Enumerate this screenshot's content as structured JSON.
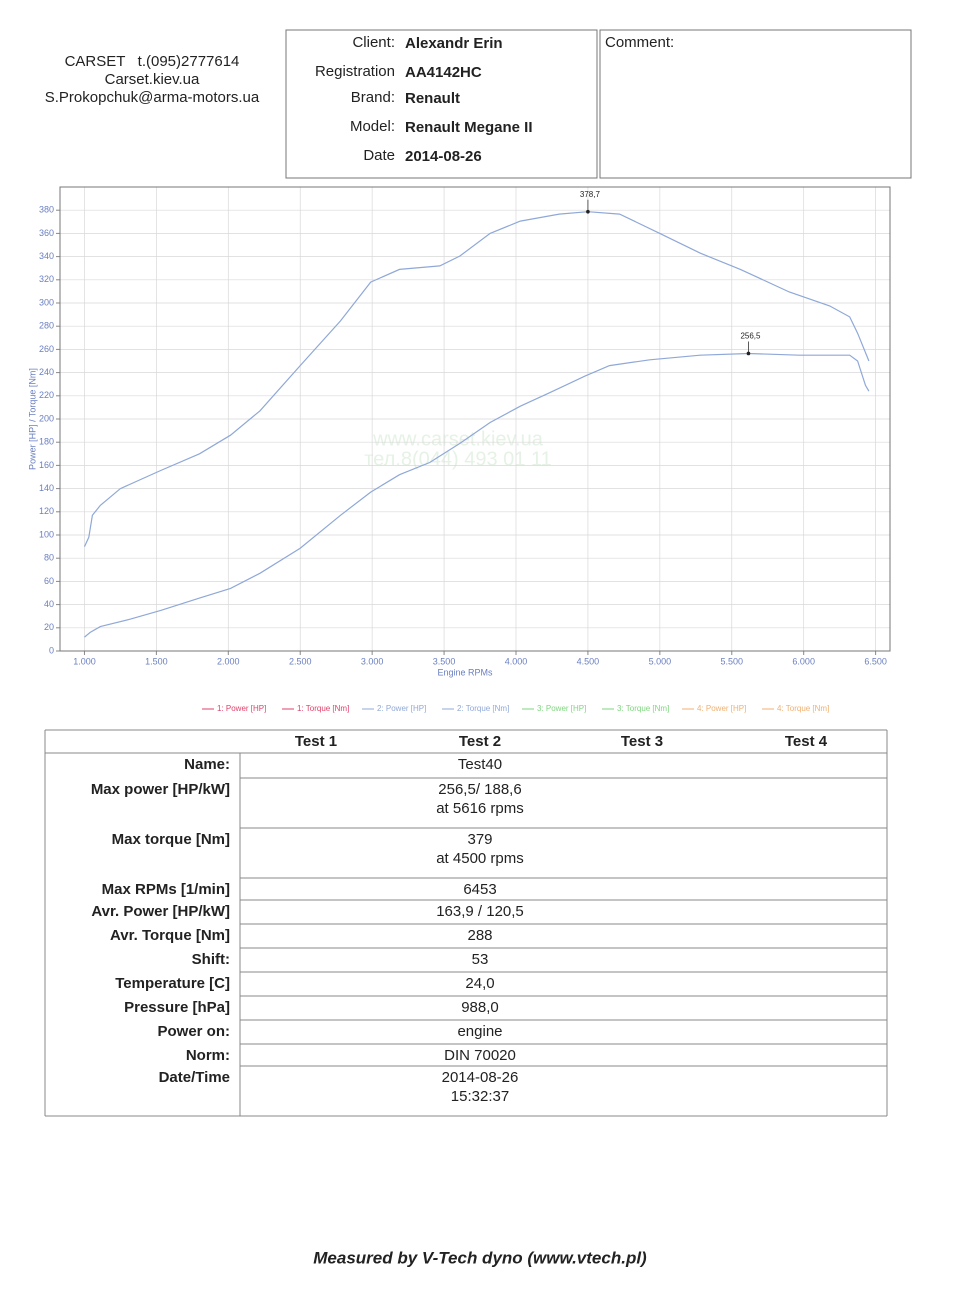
{
  "header": {
    "lines": [
      "CARSET   t.(095)2777614",
      "Carset.kiev.ua",
      "S.Prokopchuk@arma-motors.ua"
    ]
  },
  "client_box": {
    "fields": [
      {
        "label": "Client:",
        "value": "Alexandr Erin"
      },
      {
        "label": "Registration",
        "value": "AA4142HC"
      },
      {
        "label": "Brand:",
        "value": "Renault"
      },
      {
        "label": "Model:",
        "value": "Renault Megane II"
      },
      {
        "label": "Date",
        "value": "2014-08-26"
      }
    ]
  },
  "comment_box": {
    "label": "Comment:"
  },
  "chart_data": {
    "type": "line",
    "x_label": "Engine RPMs",
    "y_label": "Power [HP] / Torque [Nm]",
    "xlim": [
      830,
      6600
    ],
    "ylim": [
      0,
      400
    ],
    "xticks": [
      {
        "value": 1000,
        "label": "1.000"
      },
      {
        "value": 1500,
        "label": "1.500"
      },
      {
        "value": 2000,
        "label": "2.000"
      },
      {
        "value": 2500,
        "label": "2.500"
      },
      {
        "value": 3000,
        "label": "3.000"
      },
      {
        "value": 3500,
        "label": "3.500"
      },
      {
        "value": 4000,
        "label": "4.000"
      },
      {
        "value": 4500,
        "label": "4.500"
      },
      {
        "value": 5000,
        "label": "5.000"
      },
      {
        "value": 5500,
        "label": "5.500"
      },
      {
        "value": 6000,
        "label": "6.000"
      },
      {
        "value": 6500,
        "label": "6.500"
      }
    ],
    "yticks": [
      0,
      20,
      40,
      60,
      80,
      100,
      120,
      140,
      160,
      180,
      200,
      220,
      240,
      260,
      280,
      300,
      320,
      340,
      360,
      380
    ],
    "grid": true,
    "series": [
      {
        "name": "1: Power [HP]",
        "color": "#e0406a",
        "x": [],
        "values": []
      },
      {
        "name": "1: Torque [Nm]",
        "color": "#e0406a",
        "x": [],
        "values": []
      },
      {
        "name": "2: Power [HP]",
        "color": "#8fa8d8",
        "x": [
          1000,
          1040,
          1110,
          1320,
          1530,
          1800,
          2015,
          2220,
          2500,
          2780,
          2990,
          3190,
          3400,
          3610,
          3820,
          4030,
          4240,
          4480,
          4650,
          4930,
          5280,
          5616,
          5970,
          6320,
          6375,
          6430,
          6453
        ],
        "values": [
          12,
          16,
          21,
          27.5,
          35,
          45.6,
          54,
          67,
          88.6,
          117,
          137,
          152,
          162.5,
          179,
          197,
          211,
          223,
          237,
          246,
          251,
          255,
          256.5,
          255,
          255,
          250,
          229,
          224
        ]
      },
      {
        "name": "2: Torque [Nm]",
        "color": "#8fa8d8",
        "x": [
          1000,
          1030,
          1055,
          1110,
          1250,
          1530,
          1800,
          2015,
          2220,
          2500,
          2780,
          2990,
          3190,
          3470,
          3610,
          3820,
          4030,
          4300,
          4500,
          4720,
          5000,
          5280,
          5560,
          5900,
          6180,
          6320,
          6375,
          6453
        ],
        "values": [
          90,
          98,
          117,
          125.5,
          140,
          155.6,
          170,
          186,
          207,
          246,
          284.6,
          318,
          329,
          332,
          340.5,
          360,
          370.6,
          376.6,
          378.7,
          376.6,
          360,
          343,
          329,
          309.5,
          297.5,
          288,
          274,
          250
        ]
      },
      {
        "name": "3: Power [HP]",
        "color": "#7ed67e",
        "x": [],
        "values": []
      },
      {
        "name": "3: Torque [Nm]",
        "color": "#7ed67e",
        "x": [],
        "values": []
      },
      {
        "name": "4: Power [HP]",
        "color": "#f0b070",
        "x": [],
        "values": []
      },
      {
        "name": "4: Torque [Nm]",
        "color": "#f0b070",
        "x": [],
        "values": []
      }
    ],
    "annotations": [
      {
        "x": 4500,
        "y": 378.7,
        "label": "378,7"
      },
      {
        "x": 5616,
        "y": 256.5,
        "label": "256,5"
      }
    ],
    "watermark": [
      "www.carset.kiev.ua",
      "тел.8(044) 493 01 11"
    ]
  },
  "table": {
    "columns": [
      "Test 1",
      "Test 2",
      "Test 3",
      "Test 4"
    ],
    "rows": [
      {
        "label": "Name:",
        "test_2": [
          "Test40"
        ]
      },
      {
        "label": "Max power [HP/kW]",
        "test_2": [
          "256,5/ 188,6",
          "at 5616 rpms"
        ]
      },
      {
        "label": "Max torque [Nm]",
        "test_2": [
          "379",
          "at 4500 rpms"
        ]
      },
      {
        "label": "Max RPMs [1/min]",
        "test_2": [
          "6453"
        ]
      },
      {
        "label": "Avr. Power [HP/kW]",
        "test_2": [
          "163,9 / 120,5"
        ]
      },
      {
        "label": "Avr. Torque [Nm]",
        "test_2": [
          "288"
        ]
      },
      {
        "label": "Shift:",
        "test_2": [
          "53"
        ]
      },
      {
        "label": "Temperature [C]",
        "test_2": [
          "24,0"
        ]
      },
      {
        "label": "Pressure [hPa]",
        "test_2": [
          "988,0"
        ]
      },
      {
        "label": "Power on:",
        "test_2": [
          "engine"
        ]
      },
      {
        "label": "Norm:",
        "test_2": [
          "DIN 70020"
        ]
      },
      {
        "label": "Date/Time",
        "test_2": [
          "2014-08-26",
          "15:32:37"
        ]
      }
    ]
  },
  "footer": {
    "text": "Measured by V-Tech dyno (www.vtech.pl)"
  }
}
